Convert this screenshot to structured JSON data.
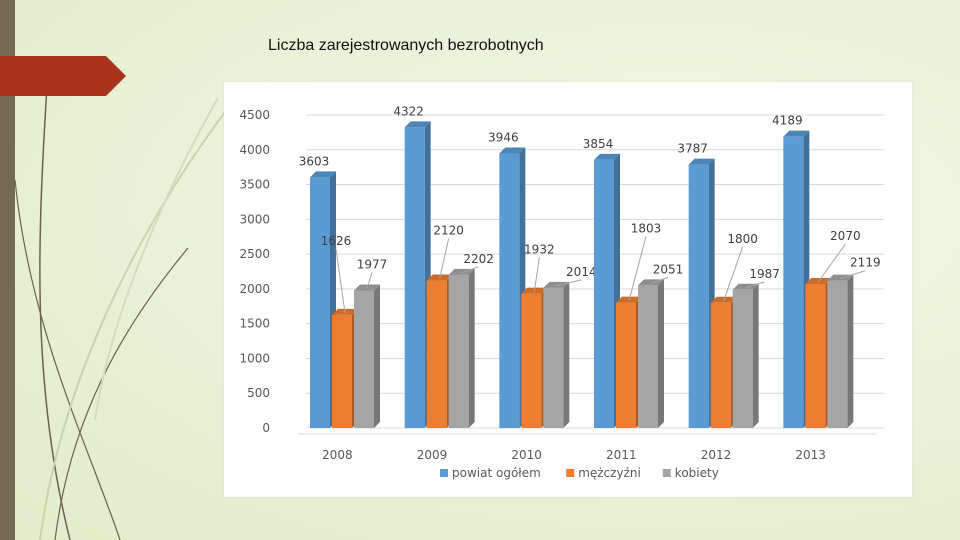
{
  "slide": {
    "title": "Liczba zarejestrowanych bezrobotnych"
  },
  "colors": {
    "series": [
      "#5b9bd5",
      "#ed7d31",
      "#a5a5a5"
    ],
    "accent": "#a8321a",
    "sidebar": "#756b52"
  },
  "chart_data": {
    "type": "bar",
    "title": "",
    "xlabel": "",
    "ylabel": "",
    "categories": [
      "2008",
      "2009",
      "2010",
      "2011",
      "2012",
      "2013"
    ],
    "ylim": [
      0,
      4500
    ],
    "yticks": [
      "0",
      "500",
      "1000",
      "1500",
      "2000",
      "2500",
      "3000",
      "3500",
      "4000",
      "4500"
    ],
    "grid": true,
    "legend_position": "bottom",
    "series": [
      {
        "name": "powiat ogółem",
        "values": [
          3603,
          4322,
          3946,
          3854,
          3787,
          4189
        ]
      },
      {
        "name": "mężczyźni",
        "values": [
          1626,
          2120,
          1932,
          1803,
          1800,
          2070
        ]
      },
      {
        "name": "kobiety",
        "values": [
          1977,
          2202,
          2014,
          2051,
          1987,
          2119
        ]
      }
    ]
  }
}
